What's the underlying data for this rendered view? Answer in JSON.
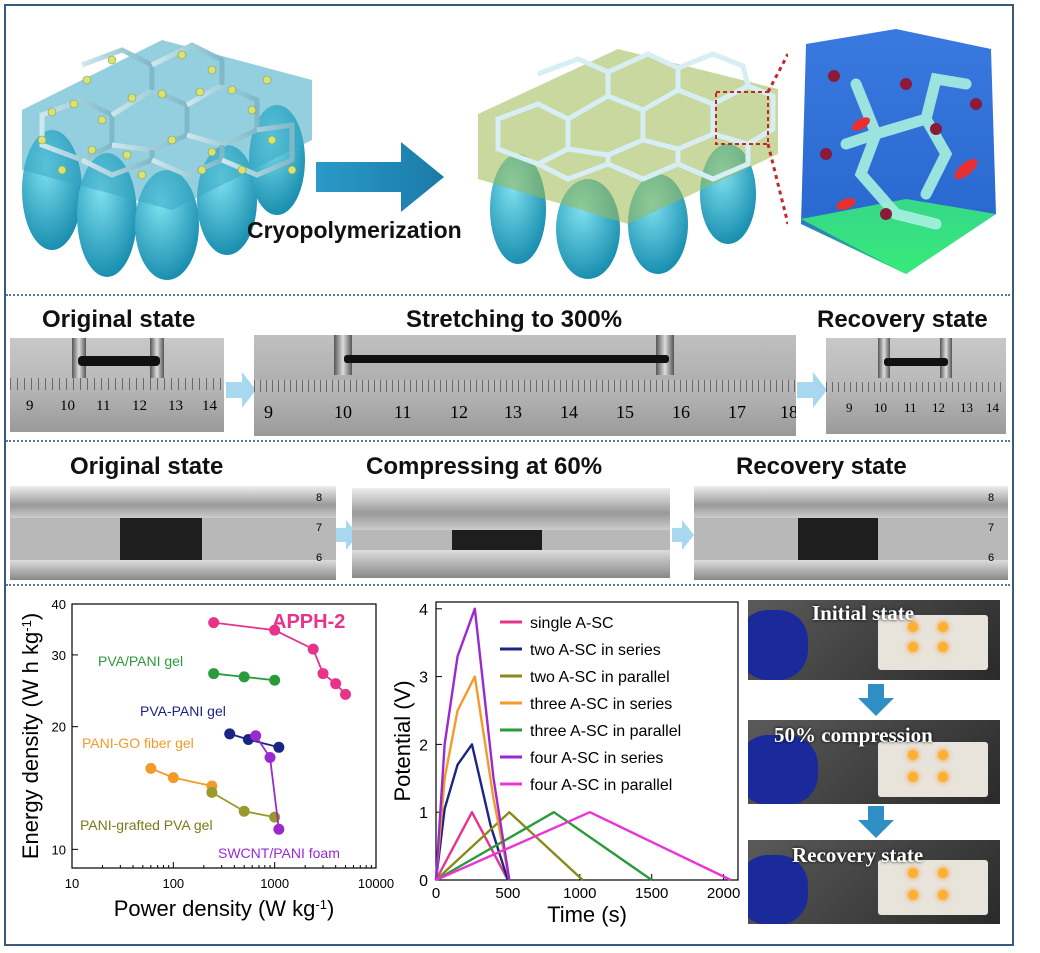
{
  "top": {
    "process_label": "Cryopolymerization"
  },
  "stretch_row": {
    "original_label": "Original state",
    "stretch_label": "Stretching to 300%",
    "recovery_label": "Recovery state",
    "ruler_left_ticks": [
      "9",
      "10",
      "11",
      "12",
      "13",
      "14"
    ],
    "ruler_mid_ticks": [
      "9",
      "10",
      "11",
      "12",
      "13",
      "14",
      "15",
      "16",
      "17",
      "18"
    ],
    "ruler_right_ticks": [
      "9",
      "10",
      "11",
      "12",
      "13",
      "14"
    ]
  },
  "compress_row": {
    "original_label": "Original state",
    "compress_label": "Compressing at 60%",
    "recovery_label": "Recovery state",
    "scale_ticks": [
      "8",
      "7",
      "6"
    ]
  },
  "led_panel": {
    "initial_label": "Initial state",
    "compression_label": "50% compression",
    "recovery_label": "Recovery state",
    "arrow_color": "#2f8fc4"
  },
  "chart_data": [
    {
      "type": "scatter",
      "xlabel": "Power density (W kg",
      "xlabel_sup": "-1",
      "xlabel_end": ")",
      "ylabel": "Energy density (W h kg",
      "ylabel_sup": "-1",
      "ylabel_end": ")",
      "xscale": "log",
      "yscale": "log",
      "xlim": [
        10,
        10000
      ],
      "ylim": [
        9,
        40
      ],
      "xticks": [
        10,
        100,
        1000,
        10000
      ],
      "xtick_labels": [
        "10",
        "100",
        "1000",
        "10000"
      ],
      "yticks": [
        10,
        20,
        30,
        40
      ],
      "ytick_labels": [
        "10",
        "20",
        "30",
        "40"
      ],
      "series": [
        {
          "name": "APPH-2",
          "color": "#e8338a",
          "points": [
            [
              250,
              36.0
            ],
            [
              1000,
              34.5
            ],
            [
              2400,
              31.0
            ],
            [
              3000,
              27.0
            ],
            [
              4000,
              25.5
            ],
            [
              5000,
              24.0
            ]
          ]
        },
        {
          "name": "PVA/PANI gel",
          "color": "#2a9a3a",
          "points": [
            [
              250,
              27.0
            ],
            [
              500,
              26.5
            ],
            [
              1000,
              26.0
            ]
          ]
        },
        {
          "name": "PVA-PANI gel",
          "color": "#1c2585",
          "points": [
            [
              360,
              19.2
            ],
            [
              550,
              18.6
            ],
            [
              1100,
              17.8
            ]
          ]
        },
        {
          "name": "PANI-GO fiber gel",
          "color": "#f39a2a",
          "points": [
            [
              60,
              15.8
            ],
            [
              100,
              15.0
            ],
            [
              240,
              14.3
            ]
          ]
        },
        {
          "name": "PANI-grafted PVA gel",
          "color": "#9a9a2a",
          "points": [
            [
              240,
              13.8
            ],
            [
              500,
              12.4
            ],
            [
              1000,
              12.0
            ]
          ]
        },
        {
          "name": "SWCNT/PANI foam",
          "color": "#9a2ad0",
          "points": [
            [
              650,
              19.0
            ],
            [
              900,
              16.8
            ],
            [
              1100,
              11.2
            ]
          ]
        }
      ],
      "series_label_colors": {
        "APPH-2": "#e8338a",
        "PVA/PANI gel": "#2a9a3a",
        "PVA-PANI gel": "#1c2585",
        "PANI-GO fiber gel": "#f39a2a",
        "PANI-grafted PVA gel": "#7a7a1a",
        "SWCNT/PANI foam": "#9a2ad0"
      }
    },
    {
      "type": "line",
      "xlabel": "Time (s)",
      "ylabel": "Potential (V)",
      "xlim": [
        0,
        2100
      ],
      "ylim": [
        0,
        4.1
      ],
      "xticks": [
        0,
        500,
        1000,
        1500,
        2000
      ],
      "yticks": [
        0,
        1,
        2,
        3,
        4
      ],
      "legend": "top-right",
      "series": [
        {
          "name": "single A-SC",
          "color": "#e8338a",
          "x": [
            0,
            250,
            500
          ],
          "y": [
            0,
            1.0,
            0
          ]
        },
        {
          "name": "two A-SC in series",
          "color": "#1c2585",
          "x": [
            0,
            60,
            150,
            250,
            380,
            500
          ],
          "y": [
            0,
            1.05,
            1.7,
            2.0,
            0.8,
            0
          ]
        },
        {
          "name": "two A-SC in parallel",
          "color": "#8a8a1a",
          "x": [
            0,
            510,
            1020
          ],
          "y": [
            0,
            1.0,
            0
          ]
        },
        {
          "name": "three A-SC in series",
          "color": "#f39a2a",
          "x": [
            0,
            60,
            150,
            270,
            400,
            510
          ],
          "y": [
            0,
            1.5,
            2.5,
            3.0,
            1.2,
            0
          ]
        },
        {
          "name": "three A-SC in parallel",
          "color": "#2a9a3a",
          "x": [
            0,
            820,
            1500
          ],
          "y": [
            0,
            1.0,
            0
          ]
        },
        {
          "name": "four A-SC in series",
          "color": "#9a2ad0",
          "x": [
            0,
            60,
            150,
            270,
            400,
            510
          ],
          "y": [
            0,
            2.0,
            3.3,
            4.0,
            1.5,
            0
          ]
        },
        {
          "name": "four A-SC in parallel",
          "color": "#e834d8",
          "x": [
            0,
            1070,
            2050
          ],
          "y": [
            0,
            1.0,
            0
          ]
        }
      ]
    }
  ]
}
